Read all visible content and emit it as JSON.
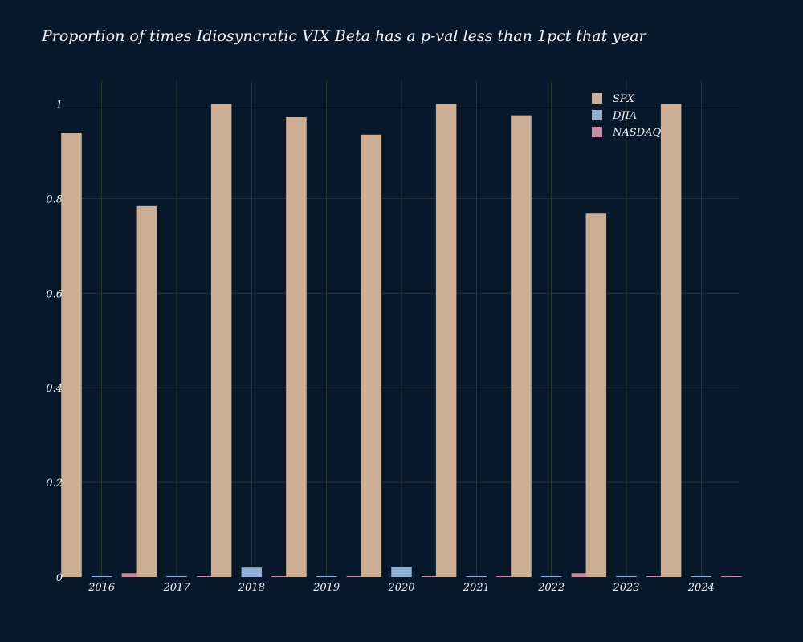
{
  "chart_data": {
    "type": "bar",
    "title": "Proportion of times Idiosyncratic VIX Beta has a p-val less than 1pct that year",
    "xlabel": "",
    "ylabel": "",
    "categories": [
      "2016",
      "2017",
      "2018",
      "2019",
      "2020",
      "2021",
      "2022",
      "2023",
      "2024"
    ],
    "series": [
      {
        "name": "SPX",
        "color": "#cbae93",
        "values": [
          0.938,
          0.784,
          1.0,
          0.972,
          0.935,
          1.0,
          0.976,
          0.768,
          1.0
        ]
      },
      {
        "name": "DJIA",
        "color": "#8fb0d4",
        "values": [
          0,
          0,
          0.02,
          0,
          0.022,
          0,
          0,
          0,
          0
        ]
      },
      {
        "name": "NASDAQ",
        "color": "#c98ca6",
        "values": [
          0.008,
          0,
          0,
          0,
          0,
          0,
          0.008,
          0,
          0
        ]
      }
    ],
    "ylim": [
      0,
      1.05
    ],
    "yticks": [
      0,
      0.2,
      0.4,
      0.6,
      0.8,
      1
    ],
    "ytick_labels": [
      "0",
      "0.2",
      "0.4",
      "0.6",
      "0.8",
      "1"
    ],
    "grid": true,
    "legend_position": "top-right"
  },
  "colors": {
    "background": "#07182b",
    "grid": "#2e3326",
    "text": "#f2f2f2"
  }
}
